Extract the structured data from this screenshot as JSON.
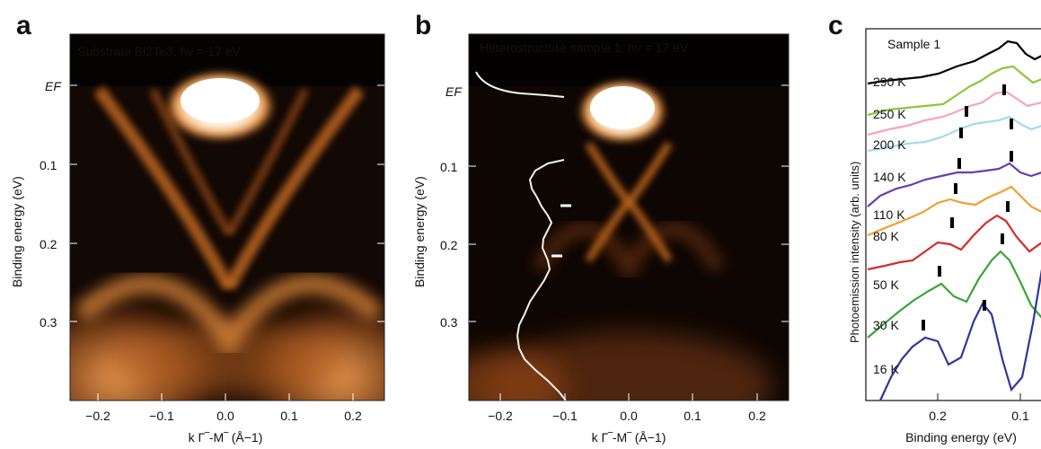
{
  "panels": [
    {
      "letter": "a",
      "banner": "Substrate Bi2Te3, hν = 17 eV",
      "ylabel": "Binding energy (eV)",
      "xlabel": "k Γ‾-M‾ (Å−1)",
      "x_ticks": [
        "−0.2",
        "−0.1",
        "0.0",
        "0.1",
        "0.2"
      ],
      "y_ticks": [
        "EF",
        "0.1",
        "0.2",
        "0.3"
      ]
    },
    {
      "letter": "b",
      "banner": "Heterostructure sample 1, hν = 17 eV",
      "ylabel": "Binding energy (eV)",
      "xlabel": "k Γ‾-M‾ (Å−1)",
      "x_ticks": [
        "−0.2",
        "−0.1",
        "0.0",
        "0.1",
        "0.2"
      ],
      "y_ticks": [
        "EF",
        "0.1",
        "0.2",
        "0.3"
      ]
    },
    {
      "letter": "c",
      "inset_label": "Sample 1",
      "ylabel": "Photoemission intensity (arb. units)",
      "xlabel": "Binding energy (eV)",
      "x_ticks": [
        "0.2",
        "0.1"
      ]
    }
  ],
  "chart_data": [
    {
      "type": "heatmap",
      "title": "Substrate Bi2Te3, hν = 17 eV",
      "xlabel": "k Γ‾-M‾ (Å−1)",
      "ylabel": "Binding energy (eV)",
      "xlim": [
        -0.25,
        0.25
      ],
      "ylim": [
        0.4,
        -0.015
      ],
      "colormap": [
        "#000000",
        "#d9721f",
        "#ffffff"
      ]
    },
    {
      "type": "heatmap",
      "title": "Heterostructure sample 1, hν = 17 eV",
      "xlabel": "k Γ‾-M‾ (Å−1)",
      "ylabel": "Binding energy (eV)",
      "xlim": [
        -0.25,
        0.25
      ],
      "ylim": [
        0.4,
        -0.015
      ],
      "colormap": [
        "#000000",
        "#d9721f",
        "#ffffff"
      ],
      "edc_marker_energies_eV": [
        0.145,
        0.215
      ]
    },
    {
      "type": "line",
      "xlabel": "Binding energy (eV)",
      "ylabel": "Photoemission intensity (arb. units)",
      "x_reversed": true,
      "xlim": [
        0.3,
        0.08
      ],
      "series": [
        {
          "name": "290 K",
          "color": "#000000"
        },
        {
          "name": "250 K",
          "color": "#8cc63f"
        },
        {
          "name": "200 K",
          "color": "#f4a6b4"
        },
        {
          "name": "140 K",
          "color": "#9fdcec"
        },
        {
          "name": "110 K",
          "color": "#6a3fa8"
        },
        {
          "name": "80 K",
          "color": "#f0a030"
        },
        {
          "name": "50 K",
          "color": "#d42b2b"
        },
        {
          "name": "30 K",
          "color": "#3aa53a"
        },
        {
          "name": "16 K",
          "color": "#2f3797"
        }
      ]
    }
  ]
}
